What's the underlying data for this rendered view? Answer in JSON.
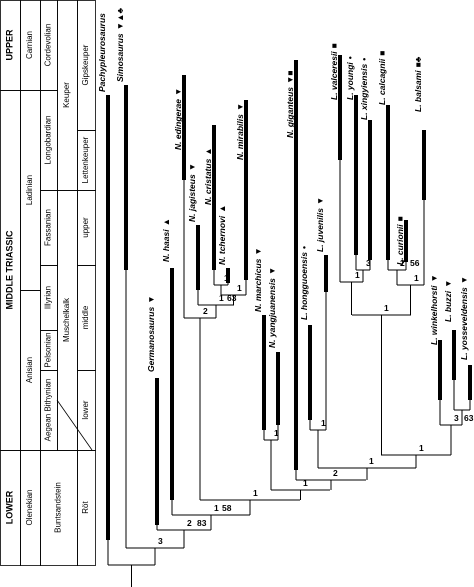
{
  "stratigraphy": {
    "columns": [
      [
        "UPPER",
        "MIDDLE TRIASSIC",
        "LOWER"
      ],
      [
        "Carnian",
        "Ladinian",
        "Anisian",
        "Olenekian"
      ],
      [
        "Cordevolian",
        "Longobardian",
        "Fassanian",
        "Illyrian",
        "Pelsonian",
        "Aegean Bithynian"
      ],
      [
        "Keuper",
        "Muschelkalk",
        "Buntsandstein"
      ],
      [
        "Gipskeuper",
        "Lettenkeuper",
        "upper",
        "middle",
        "lower",
        "Röt"
      ]
    ]
  },
  "taxa": [
    {
      "name": "Pachypleurosaurus"
    },
    {
      "name": "Simosaurus",
      "symbols": "▼▲♣"
    },
    {
      "name": "Germanosaurus",
      "symbols": "▼"
    },
    {
      "name": "N. haasi",
      "symbols": "▲"
    },
    {
      "name": "N. edingerae",
      "symbols": "▼"
    },
    {
      "name": "N. jagisteus",
      "symbols": "▼"
    },
    {
      "name": "N. cristatus",
      "symbols": "▲"
    },
    {
      "name": "N. tchernovi",
      "symbols": "▲"
    },
    {
      "name": "N. mirabilis",
      "symbols": "▼"
    },
    {
      "name": "N. marchicus",
      "symbols": "▼"
    },
    {
      "name": "N. yangjuanensis",
      "symbols": "▼"
    },
    {
      "name": "N. giganteus",
      "symbols": "▼■"
    },
    {
      "name": "L. hongguoensis",
      "symbols": "•"
    },
    {
      "name": "L. juvenilis",
      "symbols": "▼"
    },
    {
      "name": "L. valceresii",
      "symbols": "■"
    },
    {
      "name": "L. youngi",
      "symbols": "•"
    },
    {
      "name": "L. xingyiensis",
      "symbols": "•"
    },
    {
      "name": "L. calcagnii",
      "symbols": "■"
    },
    {
      "name": "L. curionii",
      "symbols": "■"
    },
    {
      "name": "L. balsami",
      "symbols": "■♣"
    },
    {
      "name": "L. winkelhorsti",
      "symbols": "▼"
    },
    {
      "name": "L. buzzi",
      "symbols": "▼"
    },
    {
      "name": "L. yosseveldensis",
      "symbols": "▼"
    }
  ],
  "node_support": [
    3,
    2,
    83,
    1,
    58,
    1,
    1,
    2,
    1,
    1,
    2,
    1,
    63,
    1,
    1,
    1,
    1,
    3,
    1,
    2,
    56,
    1,
    1,
    3,
    63
  ]
}
